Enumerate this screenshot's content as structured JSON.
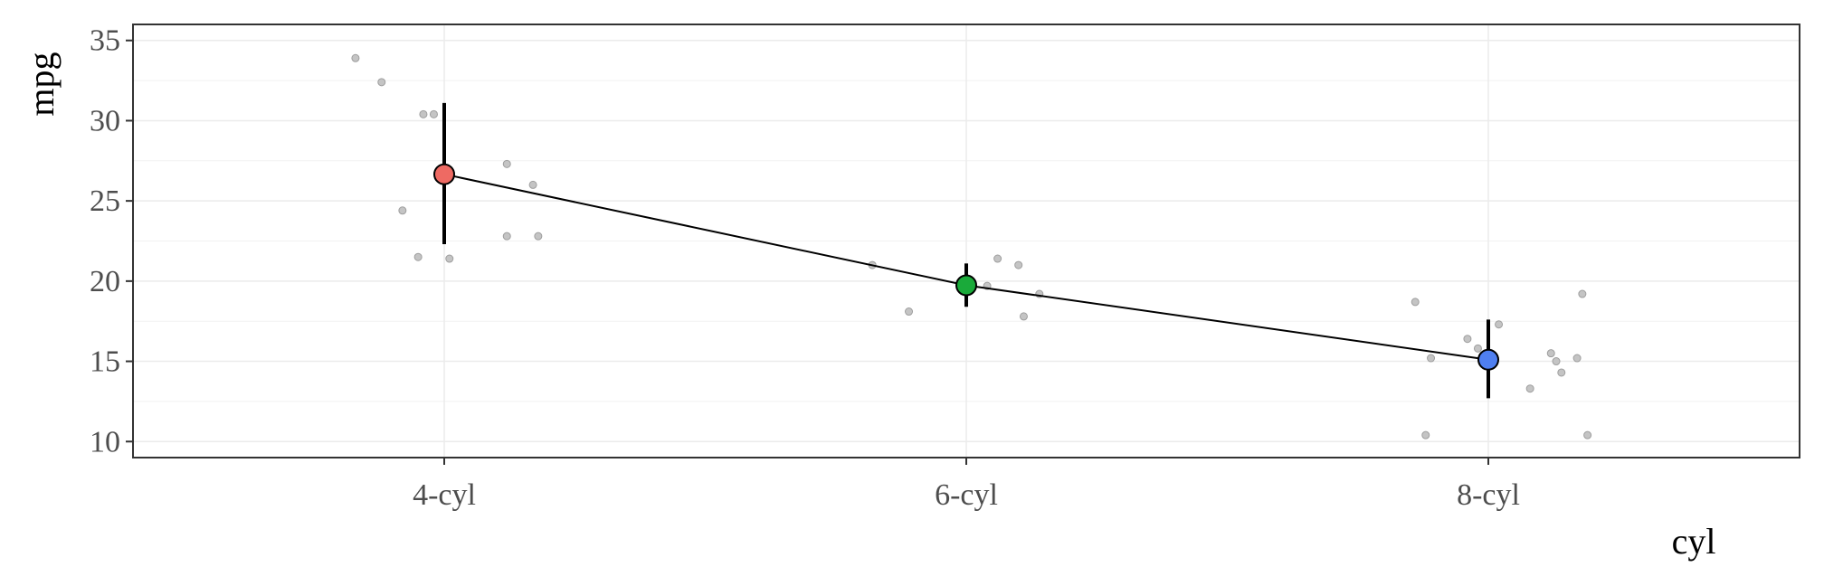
{
  "chart_data": {
    "type": "scatter",
    "title": "",
    "xlabel": "cyl",
    "ylabel": "mpg",
    "categories": [
      "4-cyl",
      "6-cyl",
      "8-cyl"
    ],
    "ylim": [
      9,
      36
    ],
    "yticks": [
      10,
      15,
      20,
      25,
      30,
      35
    ],
    "grid": true,
    "legend": "none",
    "summary": {
      "means": [
        26.66,
        19.74,
        15.1
      ],
      "lower": [
        22.3,
        18.4,
        12.7
      ],
      "upper": [
        31.1,
        21.1,
        17.6
      ],
      "colors": [
        "#ee6a63",
        "#1aaa3a",
        "#4f7ff0"
      ]
    },
    "points": [
      {
        "category": "4-cyl",
        "jitter": -0.17,
        "y": 33.9
      },
      {
        "category": "4-cyl",
        "jitter": -0.12,
        "y": 32.4
      },
      {
        "category": "4-cyl",
        "jitter": -0.04,
        "y": 30.4
      },
      {
        "category": "4-cyl",
        "jitter": -0.02,
        "y": 30.4
      },
      {
        "category": "4-cyl",
        "jitter": 0.12,
        "y": 27.3
      },
      {
        "category": "4-cyl",
        "jitter": 0.17,
        "y": 26.0
      },
      {
        "category": "4-cyl",
        "jitter": -0.08,
        "y": 24.4
      },
      {
        "category": "4-cyl",
        "jitter": 0.12,
        "y": 22.8
      },
      {
        "category": "4-cyl",
        "jitter": 0.18,
        "y": 22.8
      },
      {
        "category": "4-cyl",
        "jitter": -0.05,
        "y": 21.5
      },
      {
        "category": "4-cyl",
        "jitter": 0.01,
        "y": 21.4
      },
      {
        "category": "6-cyl",
        "jitter": 0.06,
        "y": 21.4
      },
      {
        "category": "6-cyl",
        "jitter": 0.1,
        "y": 21.0
      },
      {
        "category": "6-cyl",
        "jitter": -0.18,
        "y": 21.0
      },
      {
        "category": "6-cyl",
        "jitter": 0.04,
        "y": 19.7
      },
      {
        "category": "6-cyl",
        "jitter": 0.14,
        "y": 19.2
      },
      {
        "category": "6-cyl",
        "jitter": -0.11,
        "y": 18.1
      },
      {
        "category": "6-cyl",
        "jitter": 0.11,
        "y": 17.8
      },
      {
        "category": "8-cyl",
        "jitter": 0.18,
        "y": 19.2
      },
      {
        "category": "8-cyl",
        "jitter": -0.14,
        "y": 18.7
      },
      {
        "category": "8-cyl",
        "jitter": 0.02,
        "y": 17.3
      },
      {
        "category": "8-cyl",
        "jitter": -0.04,
        "y": 16.4
      },
      {
        "category": "8-cyl",
        "jitter": -0.02,
        "y": 15.8
      },
      {
        "category": "8-cyl",
        "jitter": 0.12,
        "y": 15.5
      },
      {
        "category": "8-cyl",
        "jitter": 0.17,
        "y": 15.2
      },
      {
        "category": "8-cyl",
        "jitter": -0.11,
        "y": 15.2
      },
      {
        "category": "8-cyl",
        "jitter": 0.13,
        "y": 15.0
      },
      {
        "category": "8-cyl",
        "jitter": 0.14,
        "y": 14.3
      },
      {
        "category": "8-cyl",
        "jitter": 0.08,
        "y": 13.3
      },
      {
        "category": "8-cyl",
        "jitter": -0.12,
        "y": 10.4
      },
      {
        "category": "8-cyl",
        "jitter": 0.19,
        "y": 10.4
      }
    ]
  }
}
